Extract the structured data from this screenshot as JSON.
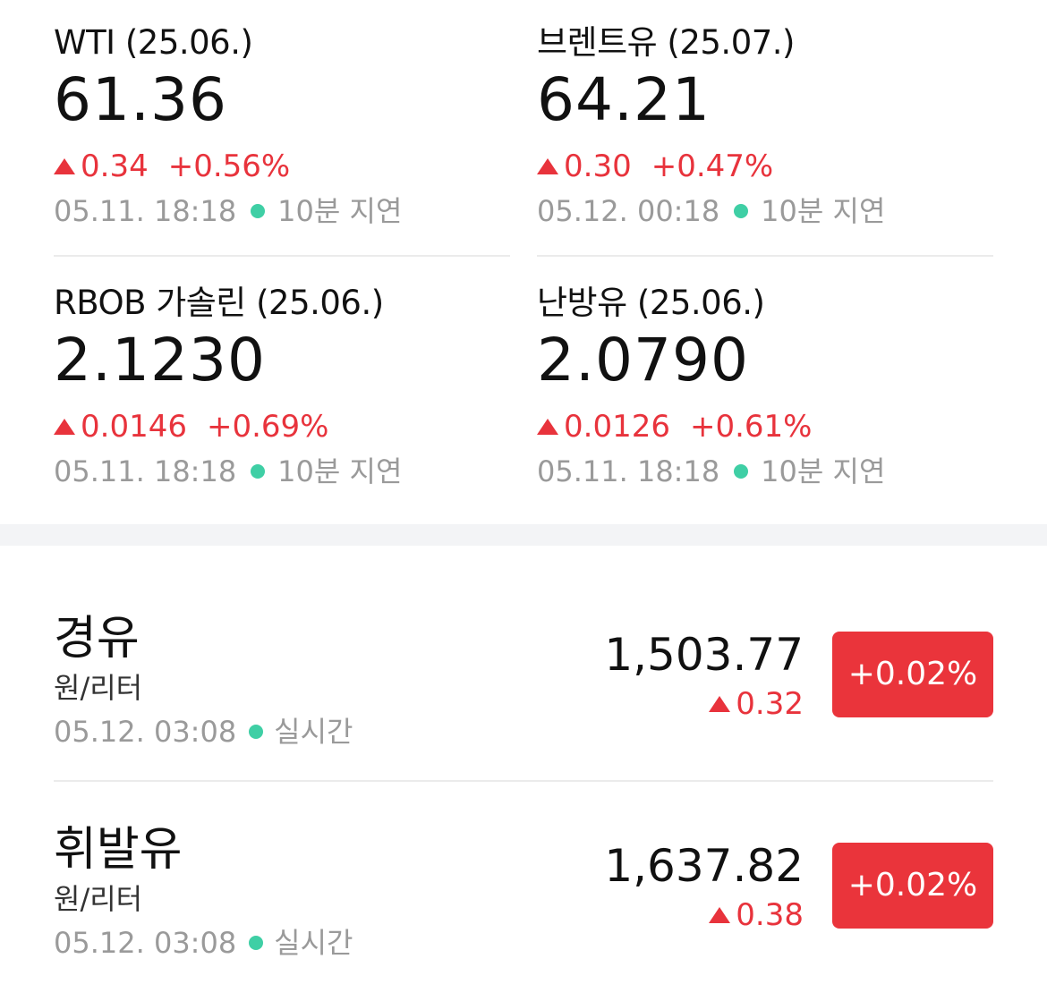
{
  "futures": [
    {
      "name": "WTI (25.06.)",
      "price": "61.36",
      "change": "0.34",
      "change_pct": "+0.56%",
      "timestamp": "05.11. 18:18",
      "delay": "10분 지연"
    },
    {
      "name": "브렌트유 (25.07.)",
      "price": "64.21",
      "change": "0.30",
      "change_pct": "+0.47%",
      "timestamp": "05.12. 00:18",
      "delay": "10분 지연"
    },
    {
      "name": "RBOB 가솔린 (25.06.)",
      "price": "2.1230",
      "change": "0.0146",
      "change_pct": "+0.69%",
      "timestamp": "05.11. 18:18",
      "delay": "10분 지연"
    },
    {
      "name": "난방유 (25.06.)",
      "price": "2.0790",
      "change": "0.0126",
      "change_pct": "+0.61%",
      "timestamp": "05.11. 18:18",
      "delay": "10분 지연"
    }
  ],
  "domestic": [
    {
      "name": "경유",
      "unit": "원/리터",
      "timestamp": "05.12. 03:08",
      "status": "실시간",
      "price": "1,503.77",
      "change": "0.32",
      "change_pct": "+0.02%"
    },
    {
      "name": "휘발유",
      "unit": "원/리터",
      "timestamp": "05.12. 03:08",
      "status": "실시간",
      "price": "1,637.82",
      "change": "0.38",
      "change_pct": "+0.02%"
    }
  ],
  "colors": {
    "up": "#e8333c",
    "badge_bg": "#ea343b",
    "live_dot": "#3fcfa5",
    "muted_text": "#9a9a9a",
    "divider": "#ebebeb"
  },
  "icons": {
    "up_arrow": "up-triangle-icon",
    "status_dot": "status-dot-icon"
  }
}
